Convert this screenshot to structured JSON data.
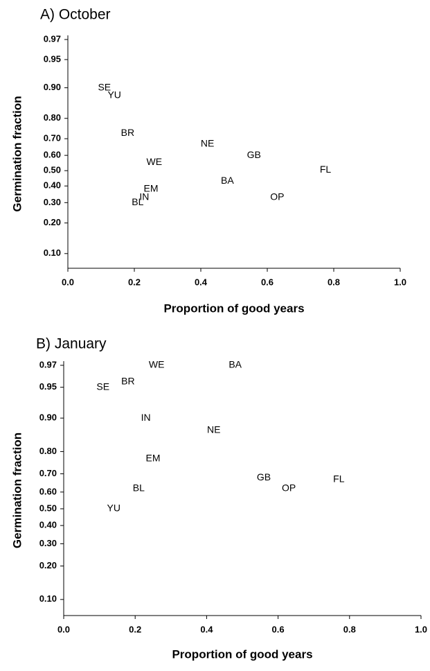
{
  "chart_data": [
    {
      "type": "scatter",
      "title": "A) October",
      "x_label": "Proportion of good years",
      "y_label": "Germination fraction",
      "yscale": "logit",
      "xlim": [
        0,
        1
      ],
      "ylim": [
        0.07,
        0.97
      ],
      "xticks": [
        {
          "value": 0,
          "label": "0.0"
        },
        0.2,
        0.4,
        0.6,
        0.8,
        {
          "value": 1,
          "label": "1.0"
        }
      ],
      "yticks": [
        {
          "value": 0.1,
          "label": "0.10"
        },
        {
          "value": 0.2,
          "label": "0.20"
        },
        {
          "value": 0.3,
          "label": "0.30"
        },
        {
          "value": 0.4,
          "label": "0.40"
        },
        {
          "value": 0.5,
          "label": "0.50"
        },
        {
          "value": 0.6,
          "label": "0.60"
        },
        {
          "value": 0.7,
          "label": "0.70"
        },
        {
          "value": 0.8,
          "label": "0.80"
        },
        {
          "value": 0.9,
          "label": "0.90"
        },
        0.95,
        0.97
      ],
      "series": [
        {
          "labels": [
            "SE",
            "YU",
            "BR",
            "NE",
            "GB",
            "WE",
            "FL",
            "BA",
            "EM",
            "IN",
            "BL",
            "OP"
          ],
          "x": [
            0.11,
            0.14,
            0.18,
            0.42,
            0.56,
            0.26,
            0.775,
            0.48,
            0.25,
            0.23,
            0.21,
            0.63
          ],
          "values": [
            0.9,
            0.88,
            0.73,
            0.67,
            0.6,
            0.555,
            0.505,
            0.43,
            0.38,
            0.33,
            0.3,
            0.33
          ],
          "color": "#000000"
        }
      ]
    },
    {
      "type": "scatter",
      "title": "B) January",
      "x_label": "Proportion of good years",
      "y_label": "Germination fraction",
      "yscale": "logit",
      "xlim": [
        0,
        1
      ],
      "ylim": [
        0.07,
        0.97
      ],
      "xticks": [
        {
          "value": 0,
          "label": "0.0"
        },
        0.2,
        0.4,
        0.6,
        0.8,
        {
          "value": 1,
          "label": "1.0"
        }
      ],
      "yticks": [
        {
          "value": 0.1,
          "label": "0.10"
        },
        {
          "value": 0.2,
          "label": "0.20"
        },
        {
          "value": 0.3,
          "label": "0.30"
        },
        {
          "value": 0.4,
          "label": "0.40"
        },
        {
          "value": 0.5,
          "label": "0.50"
        },
        {
          "value": 0.6,
          "label": "0.60"
        },
        {
          "value": 0.7,
          "label": "0.70"
        },
        {
          "value": 0.8,
          "label": "0.80"
        },
        {
          "value": 0.9,
          "label": "0.90"
        },
        0.95,
        0.97
      ],
      "series": [
        {
          "labels": [
            "WE",
            "BA",
            "SE",
            "BR",
            "IN",
            "NE",
            "EM",
            "GB",
            "FL",
            "OP",
            "BL",
            "YU"
          ],
          "x": [
            0.26,
            0.48,
            0.11,
            0.18,
            0.23,
            0.42,
            0.25,
            0.56,
            0.77,
            0.63,
            0.21,
            0.14
          ],
          "values": [
            0.97,
            0.97,
            0.95,
            0.956,
            0.9,
            0.87,
            0.77,
            0.68,
            0.67,
            0.62,
            0.62,
            0.5
          ],
          "color": "#000000"
        }
      ]
    }
  ]
}
